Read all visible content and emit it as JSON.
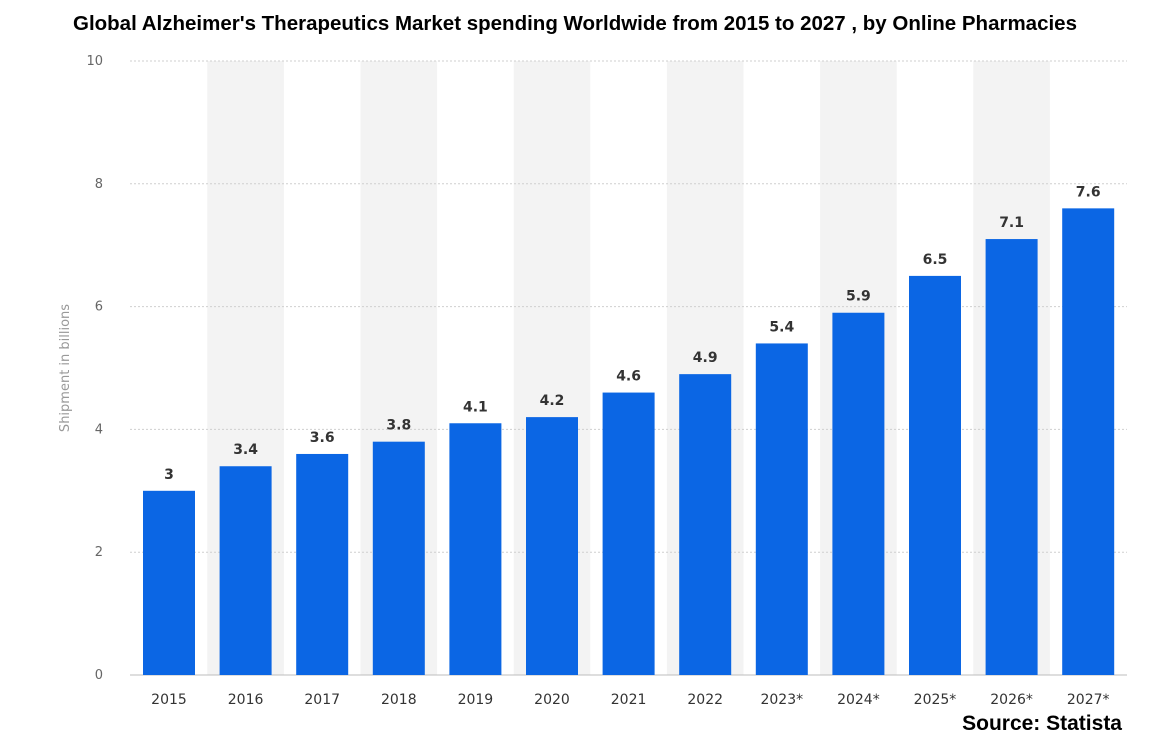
{
  "title": "Global Alzheimer's Therapeutics Market spending Worldwide from 2015 to 2027 , by Online Pharmacies",
  "source": "Source: Statista",
  "colors": {
    "bar": "#0b66e4",
    "band": "#f3f3f3",
    "grid": "#cfcfcf"
  },
  "chart_data": {
    "type": "bar",
    "title": "Global Alzheimer's Therapeutics Market spending Worldwide from 2015 to 2027 , by Online Pharmacies",
    "xlabel": "",
    "ylabel": "Shipment in billions",
    "ylim": [
      0,
      10
    ],
    "yticks": [
      0,
      2,
      4,
      6,
      8,
      10
    ],
    "grid": true,
    "categories": [
      "2015",
      "2016",
      "2017",
      "2018",
      "2019",
      "2020",
      "2021",
      "2022",
      "2023*",
      "2024*",
      "2025*",
      "2026*",
      "2027*"
    ],
    "values": [
      3,
      3.4,
      3.6,
      3.8,
      4.1,
      4.2,
      4.6,
      4.9,
      5.4,
      5.9,
      6.5,
      7.1,
      7.6
    ],
    "labels": [
      "3",
      "3.4",
      "3.6",
      "3.8",
      "4.1",
      "4.2",
      "4.6",
      "4.9",
      "5.4",
      "5.9",
      "6.5",
      "7.1",
      "7.6"
    ]
  }
}
